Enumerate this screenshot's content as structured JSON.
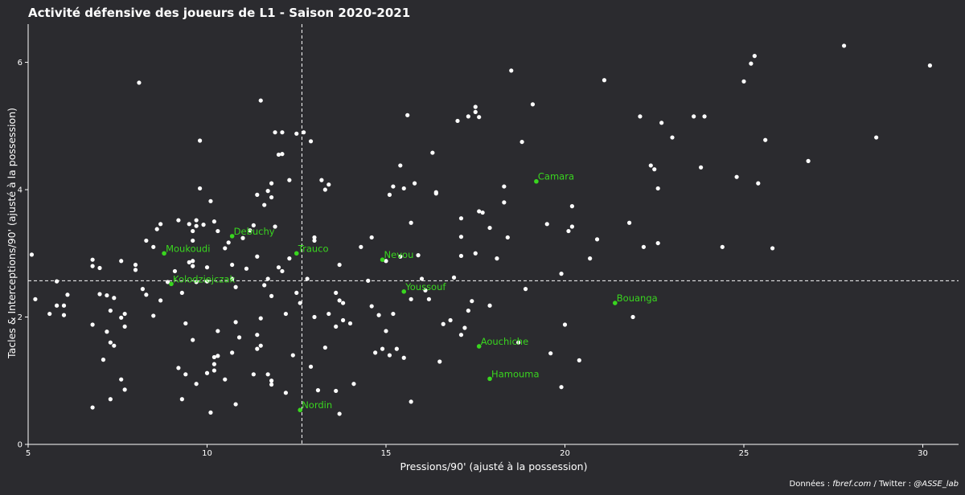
{
  "chart_data": {
    "type": "scatter",
    "title": "Activité défensive des joueurs de L1 - Saison 2020-2021",
    "xlabel": "Pressions/90' (ajusté à la possession)",
    "ylabel": "Tacles & Interceptions/90' (ajusté à la possession)",
    "xlim": [
      5,
      31
    ],
    "ylim": [
      0,
      6.6
    ],
    "xticks": [
      5,
      10,
      15,
      20,
      25,
      30
    ],
    "yticks": [
      0,
      2,
      4,
      6
    ],
    "grid": false,
    "reference_lines": {
      "x_mean": 12.65,
      "y_mean": 2.57
    },
    "colors": {
      "background": "#2b2b2f",
      "points": "#ffffff",
      "highlight": "#39d61f",
      "reference": "#ffffff"
    },
    "highlighted": [
      {
        "name": "Camara",
        "x": 19.2,
        "y": 4.13
      },
      {
        "name": "Debuchy",
        "x": 10.7,
        "y": 3.27
      },
      {
        "name": "Moukoudi",
        "x": 8.8,
        "y": 3.0
      },
      {
        "name": "Trauco",
        "x": 12.5,
        "y": 3.0
      },
      {
        "name": "Nevou",
        "x": 14.9,
        "y": 2.9
      },
      {
        "name": "Kolodziejczak",
        "x": 9.0,
        "y": 2.52
      },
      {
        "name": "Youssouf",
        "x": 15.5,
        "y": 2.4
      },
      {
        "name": "Bouanga",
        "x": 21.4,
        "y": 2.22
      },
      {
        "name": "Aouchiche",
        "x": 17.6,
        "y": 1.54
      },
      {
        "name": "Hamouma",
        "x": 17.9,
        "y": 1.03
      },
      {
        "name": "Nordin",
        "x": 12.6,
        "y": 0.54
      }
    ],
    "points": [
      [
        5.1,
        2.98
      ],
      [
        5.2,
        2.28
      ],
      [
        5.6,
        2.05
      ],
      [
        5.8,
        2.56
      ],
      [
        5.8,
        2.18
      ],
      [
        6.0,
        2.18
      ],
      [
        6.0,
        2.03
      ],
      [
        6.1,
        2.35
      ],
      [
        6.8,
        2.8
      ],
      [
        6.8,
        2.9
      ],
      [
        6.8,
        1.88
      ],
      [
        6.8,
        0.58
      ],
      [
        7.0,
        2.77
      ],
      [
        7.0,
        2.36
      ],
      [
        7.1,
        1.33
      ],
      [
        7.2,
        2.34
      ],
      [
        7.2,
        1.77
      ],
      [
        7.3,
        1.6
      ],
      [
        7.3,
        2.1
      ],
      [
        7.4,
        1.55
      ],
      [
        7.4,
        2.3
      ],
      [
        7.3,
        0.71
      ],
      [
        7.6,
        2.88
      ],
      [
        7.6,
        1.99
      ],
      [
        7.6,
        1.02
      ],
      [
        7.7,
        2.05
      ],
      [
        7.7,
        1.85
      ],
      [
        7.7,
        0.86
      ],
      [
        8.0,
        2.82
      ],
      [
        8.0,
        2.74
      ],
      [
        8.1,
        5.68
      ],
      [
        8.2,
        2.44
      ],
      [
        8.3,
        3.2
      ],
      [
        8.3,
        2.35
      ],
      [
        8.5,
        3.1
      ],
      [
        8.5,
        2.02
      ],
      [
        8.6,
        3.38
      ],
      [
        8.7,
        3.46
      ],
      [
        8.7,
        2.26
      ],
      [
        8.9,
        2.55
      ],
      [
        9.1,
        2.72
      ],
      [
        9.2,
        3.52
      ],
      [
        9.2,
        1.2
      ],
      [
        9.3,
        2.38
      ],
      [
        9.3,
        0.71
      ],
      [
        9.4,
        1.1
      ],
      [
        9.4,
        1.9
      ],
      [
        9.5,
        3.46
      ],
      [
        9.5,
        2.86
      ],
      [
        9.6,
        3.35
      ],
      [
        9.6,
        3.2
      ],
      [
        9.6,
        2.88
      ],
      [
        9.6,
        2.8
      ],
      [
        9.6,
        1.64
      ],
      [
        9.7,
        3.52
      ],
      [
        9.7,
        3.43
      ],
      [
        9.7,
        2.55
      ],
      [
        9.7,
        0.95
      ],
      [
        9.8,
        4.77
      ],
      [
        9.8,
        4.02
      ],
      [
        9.9,
        3.45
      ],
      [
        10.0,
        1.12
      ],
      [
        10.0,
        2.78
      ],
      [
        10.0,
        2.56
      ],
      [
        10.1,
        3.82
      ],
      [
        10.1,
        0.5
      ],
      [
        10.2,
        3.5
      ],
      [
        10.2,
        1.37
      ],
      [
        10.2,
        1.26
      ],
      [
        10.2,
        1.16
      ],
      [
        10.3,
        1.39
      ],
      [
        10.3,
        3.35
      ],
      [
        10.3,
        1.78
      ],
      [
        10.5,
        3.08
      ],
      [
        10.5,
        1.02
      ],
      [
        10.6,
        3.17
      ],
      [
        10.7,
        2.6
      ],
      [
        10.7,
        2.82
      ],
      [
        10.7,
        1.44
      ],
      [
        10.8,
        2.47
      ],
      [
        10.8,
        1.92
      ],
      [
        10.8,
        0.63
      ],
      [
        10.9,
        1.68
      ],
      [
        11.0,
        3.24
      ],
      [
        11.1,
        2.76
      ],
      [
        11.2,
        3.36
      ],
      [
        11.3,
        3.44
      ],
      [
        11.3,
        1.1
      ],
      [
        11.4,
        3.92
      ],
      [
        11.4,
        1.5
      ],
      [
        11.4,
        2.95
      ],
      [
        11.4,
        1.72
      ],
      [
        11.5,
        5.4
      ],
      [
        11.5,
        1.98
      ],
      [
        11.5,
        1.55
      ],
      [
        11.6,
        3.76
      ],
      [
        11.6,
        2.5
      ],
      [
        11.7,
        3.98
      ],
      [
        11.7,
        1.1
      ],
      [
        11.7,
        2.6
      ],
      [
        11.8,
        4.1
      ],
      [
        11.8,
        3.88
      ],
      [
        11.8,
        2.33
      ],
      [
        11.8,
        1.0
      ],
      [
        11.8,
        0.94
      ],
      [
        11.9,
        4.9
      ],
      [
        11.9,
        3.42
      ],
      [
        12.0,
        4.55
      ],
      [
        12.0,
        2.78
      ],
      [
        12.1,
        4.9
      ],
      [
        12.1,
        4.56
      ],
      [
        12.1,
        2.72
      ],
      [
        12.2,
        2.05
      ],
      [
        12.2,
        0.81
      ],
      [
        12.3,
        4.15
      ],
      [
        12.3,
        2.92
      ],
      [
        12.4,
        1.4
      ],
      [
        12.5,
        4.88
      ],
      [
        12.5,
        2.38
      ],
      [
        12.6,
        2.22
      ],
      [
        12.7,
        4.9
      ],
      [
        12.8,
        2.6
      ],
      [
        12.9,
        4.76
      ],
      [
        12.9,
        1.22
      ],
      [
        13.0,
        3.25
      ],
      [
        13.0,
        3.2
      ],
      [
        13.0,
        2.0
      ],
      [
        13.1,
        0.85
      ],
      [
        13.2,
        4.15
      ],
      [
        13.3,
        4.0
      ],
      [
        13.4,
        4.08
      ],
      [
        13.4,
        2.05
      ],
      [
        13.3,
        1.52
      ],
      [
        13.6,
        2.38
      ],
      [
        13.6,
        1.85
      ],
      [
        13.6,
        0.84
      ],
      [
        13.7,
        2.82
      ],
      [
        13.7,
        2.26
      ],
      [
        13.7,
        0.48
      ],
      [
        13.8,
        2.22
      ],
      [
        13.8,
        1.95
      ],
      [
        14.0,
        1.9
      ],
      [
        14.1,
        0.95
      ],
      [
        14.3,
        3.1
      ],
      [
        14.5,
        2.57
      ],
      [
        14.6,
        3.25
      ],
      [
        14.6,
        2.17
      ],
      [
        14.7,
        1.44
      ],
      [
        14.8,
        2.03
      ],
      [
        14.9,
        1.5
      ],
      [
        15.0,
        2.88
      ],
      [
        15.0,
        1.78
      ],
      [
        15.1,
        3.92
      ],
      [
        15.1,
        1.4
      ],
      [
        15.2,
        4.05
      ],
      [
        15.2,
        2.05
      ],
      [
        15.3,
        1.5
      ],
      [
        15.4,
        4.38
      ],
      [
        15.4,
        2.95
      ],
      [
        15.5,
        4.02
      ],
      [
        15.5,
        1.36
      ],
      [
        15.6,
        5.17
      ],
      [
        15.7,
        3.48
      ],
      [
        15.7,
        2.28
      ],
      [
        15.7,
        0.67
      ],
      [
        15.8,
        4.1
      ],
      [
        15.9,
        2.97
      ],
      [
        16.0,
        2.6
      ],
      [
        16.1,
        2.42
      ],
      [
        16.2,
        2.28
      ],
      [
        16.3,
        4.58
      ],
      [
        16.4,
        3.96
      ],
      [
        16.4,
        3.94
      ],
      [
        16.5,
        1.3
      ],
      [
        16.6,
        1.89
      ],
      [
        16.8,
        1.95
      ],
      [
        16.9,
        2.62
      ],
      [
        17.0,
        5.08
      ],
      [
        17.1,
        3.55
      ],
      [
        17.1,
        3.26
      ],
      [
        17.1,
        2.96
      ],
      [
        17.1,
        1.72
      ],
      [
        17.2,
        1.83
      ],
      [
        17.3,
        5.15
      ],
      [
        17.3,
        2.1
      ],
      [
        17.4,
        2.25
      ],
      [
        17.5,
        5.3
      ],
      [
        17.5,
        5.22
      ],
      [
        17.5,
        3.0
      ],
      [
        17.6,
        5.14
      ],
      [
        17.6,
        3.66
      ],
      [
        17.7,
        3.64
      ],
      [
        17.9,
        3.4
      ],
      [
        17.9,
        2.18
      ],
      [
        18.1,
        2.92
      ],
      [
        18.3,
        3.8
      ],
      [
        18.3,
        4.05
      ],
      [
        18.4,
        3.25
      ],
      [
        18.5,
        5.87
      ],
      [
        18.7,
        1.6
      ],
      [
        18.8,
        4.75
      ],
      [
        18.9,
        2.44
      ],
      [
        19.1,
        5.34
      ],
      [
        19.5,
        3.46
      ],
      [
        19.6,
        1.43
      ],
      [
        19.9,
        2.68
      ],
      [
        19.9,
        0.9
      ],
      [
        20.0,
        1.88
      ],
      [
        20.1,
        3.35
      ],
      [
        20.2,
        3.42
      ],
      [
        20.2,
        3.74
      ],
      [
        20.4,
        1.32
      ],
      [
        20.7,
        2.92
      ],
      [
        20.9,
        3.22
      ],
      [
        21.1,
        5.72
      ],
      [
        21.8,
        3.48
      ],
      [
        21.9,
        2.0
      ],
      [
        22.1,
        5.15
      ],
      [
        22.2,
        3.1
      ],
      [
        22.4,
        4.38
      ],
      [
        22.5,
        4.32
      ],
      [
        22.6,
        4.02
      ],
      [
        22.6,
        3.16
      ],
      [
        22.7,
        5.05
      ],
      [
        23.0,
        4.82
      ],
      [
        23.6,
        5.15
      ],
      [
        23.8,
        4.35
      ],
      [
        23.9,
        5.15
      ],
      [
        24.4,
        3.1
      ],
      [
        24.8,
        4.2
      ],
      [
        25.0,
        5.7
      ],
      [
        25.2,
        5.98
      ],
      [
        25.3,
        6.1
      ],
      [
        25.4,
        4.1
      ],
      [
        25.6,
        4.78
      ],
      [
        25.8,
        3.08
      ],
      [
        26.8,
        4.45
      ],
      [
        27.8,
        6.26
      ],
      [
        28.7,
        4.82
      ],
      [
        30.2,
        5.95
      ]
    ],
    "caption": {
      "prefix": "Données : ",
      "source": "fbref.com",
      "middle": " / Twitter : ",
      "handle": "@ASSE_lab"
    }
  }
}
